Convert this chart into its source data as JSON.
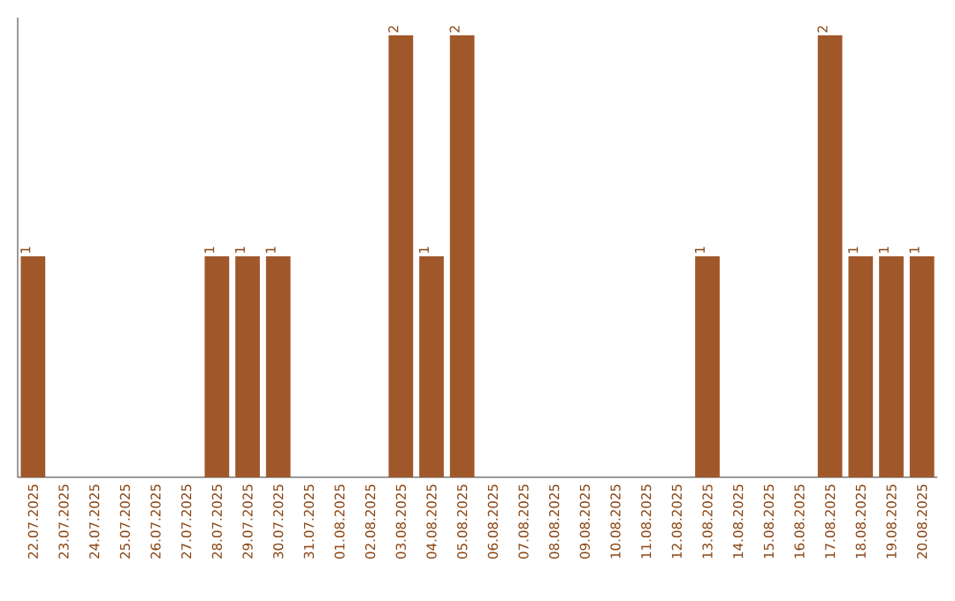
{
  "chart_data": {
    "type": "bar",
    "categories": [
      "22.07.2025",
      "23.07.2025",
      "24.07.2025",
      "25.07.2025",
      "26.07.2025",
      "27.07.2025",
      "28.07.2025",
      "29.07.2025",
      "30.07.2025",
      "31.07.2025",
      "01.08.2025",
      "02.08.2025",
      "03.08.2025",
      "04.08.2025",
      "05.08.2025",
      "06.08.2025",
      "07.08.2025",
      "08.08.2025",
      "09.08.2025",
      "10.08.2025",
      "11.08.2025",
      "12.08.2025",
      "13.08.2025",
      "14.08.2025",
      "15.08.2025",
      "16.08.2025",
      "17.08.2025",
      "18.08.2025",
      "19.08.2025",
      "20.08.2025"
    ],
    "values": [
      1,
      0,
      0,
      0,
      0,
      0,
      1,
      1,
      1,
      0,
      0,
      0,
      2,
      1,
      2,
      0,
      0,
      0,
      0,
      0,
      0,
      0,
      1,
      0,
      0,
      0,
      2,
      1,
      1,
      1
    ],
    "value_labels": [
      "1",
      null,
      null,
      null,
      null,
      null,
      "1",
      "1",
      "1",
      null,
      null,
      null,
      "2",
      "1",
      "2",
      null,
      null,
      null,
      null,
      null,
      null,
      null,
      "1",
      null,
      null,
      null,
      "2",
      "1",
      "1",
      "1"
    ],
    "color": "#a0572a"
  }
}
